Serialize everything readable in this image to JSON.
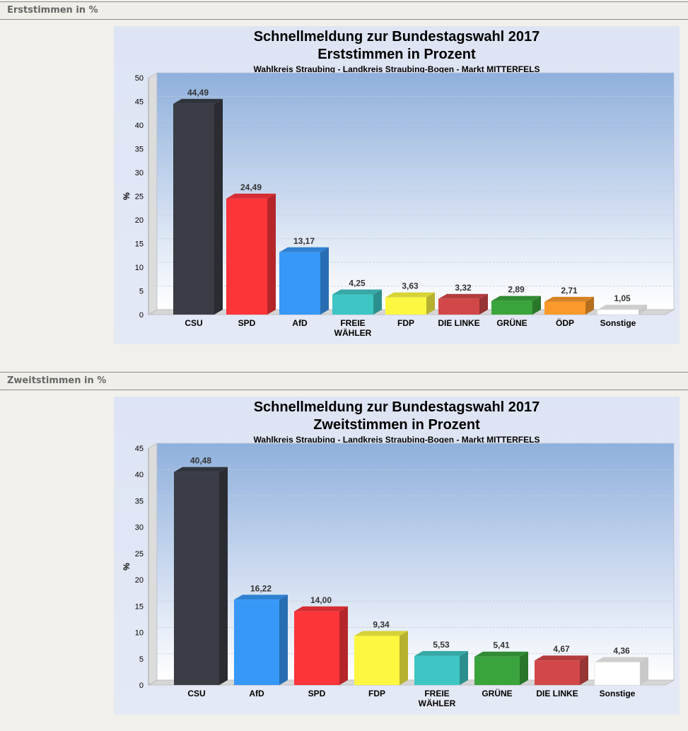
{
  "sections": [
    {
      "header": "Erststimmen in %"
    },
    {
      "header": "Zweitstimmen in %"
    }
  ],
  "chart_data": [
    {
      "type": "bar",
      "title": "Schnellmeldung zur Bundestagswahl 2017",
      "title2": "Erststimmen in Prozent",
      "subtitle": "Wahlkreis Straubing - Landkreis Straubing-Bogen - Markt MITTERFELS",
      "ylabel": "%",
      "ylim": [
        0,
        50
      ],
      "yticks": [
        0,
        5,
        10,
        15,
        20,
        25,
        30,
        35,
        40,
        45,
        50
      ],
      "categories": [
        "CSU",
        "SPD",
        "AfD",
        "FREIE\nWÄHLER",
        "FDP",
        "DIE LINKE",
        "GRÜNE",
        "ÖDP",
        "Sonstige"
      ],
      "values": [
        44.49,
        24.49,
        13.17,
        4.25,
        3.63,
        3.32,
        2.89,
        2.71,
        1.05
      ],
      "value_labels": [
        "44,49",
        "24,49",
        "13,17",
        "4,25",
        "3,63",
        "3,32",
        "2,89",
        "2,71",
        "1,05"
      ],
      "colors": [
        "#3a3d45",
        "#fb353a",
        "#3798f7",
        "#3ec6c4",
        "#fcf741",
        "#d24848",
        "#3aa43c",
        "#fb9a2b",
        "#ffffff"
      ],
      "grid": true
    },
    {
      "type": "bar",
      "title": "Schnellmeldung zur Bundestagswahl 2017",
      "title2": "Zweitstimmen in Prozent",
      "subtitle": "Wahlkreis Straubing - Landkreis Straubing-Bogen - Markt MITTERFELS",
      "ylabel": "%",
      "ylim": [
        0,
        45
      ],
      "yticks": [
        0,
        5,
        10,
        15,
        20,
        25,
        30,
        35,
        40,
        45
      ],
      "categories": [
        "CSU",
        "AfD",
        "SPD",
        "FDP",
        "FREIE\nWÄHLER",
        "GRÜNE",
        "DIE LINKE",
        "Sonstige"
      ],
      "values": [
        40.48,
        16.22,
        14.0,
        9.34,
        5.53,
        5.41,
        4.67,
        4.36
      ],
      "value_labels": [
        "40,48",
        "16,22",
        "14,00",
        "9,34",
        "5,53",
        "5,41",
        "4,67",
        "4,36"
      ],
      "colors": [
        "#3a3d45",
        "#3798f7",
        "#fb353a",
        "#fcf741",
        "#3ec6c4",
        "#3aa43c",
        "#d24848",
        "#ffffff"
      ],
      "grid": true
    }
  ]
}
